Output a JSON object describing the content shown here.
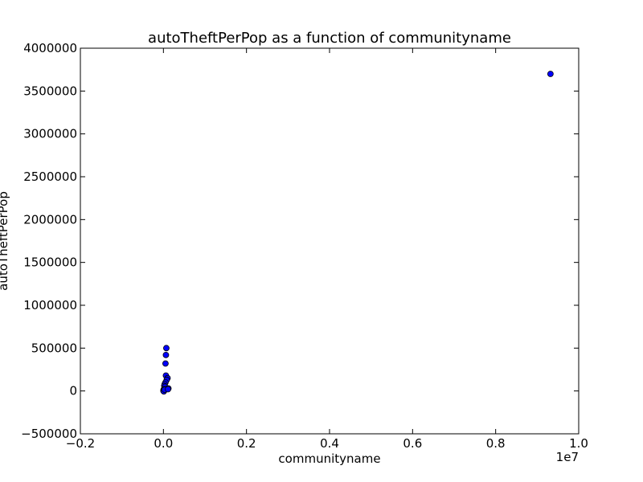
{
  "chart_data": {
    "type": "scatter",
    "title": "autoTheftPerPop as a function of communityname",
    "xlabel": "communityname",
    "ylabel": "autoTheftPerPop",
    "x_offset_label": "1e7",
    "xlim": [
      -0.2,
      1.0
    ],
    "ylim": [
      -500000,
      4000000
    ],
    "x_ticks": [
      -0.2,
      0.0,
      0.2,
      0.4,
      0.6,
      0.8,
      1.0
    ],
    "x_tick_labels": [
      "−0.2",
      "0.0",
      "0.2",
      "0.4",
      "0.6",
      "0.8",
      "1.0"
    ],
    "y_ticks": [
      -500000,
      0,
      500000,
      1000000,
      1500000,
      2000000,
      2500000,
      3000000,
      3500000,
      4000000
    ],
    "y_tick_labels": [
      "−500000",
      "0",
      "500000",
      "1000000",
      "1500000",
      "2000000",
      "2500000",
      "3000000",
      "3500000",
      "4000000"
    ],
    "grid": false,
    "marker_color": "#0000ff",
    "series": [
      {
        "x": [
          0.932,
          0.007,
          0.006,
          0.005,
          0.006,
          0.01,
          0.008,
          0.005,
          0.003,
          0.002,
          0.004,
          0.012,
          0.009,
          0.001,
          0.0,
          0.002,
          0.0,
          0.001,
          0.003,
          0.011
        ],
        "y": [
          3700000,
          500000,
          420000,
          320000,
          180000,
          150000,
          130000,
          100000,
          80000,
          60000,
          50000,
          30000,
          25000,
          20000,
          10000,
          5000,
          0,
          -5000,
          15000,
          20000
        ]
      }
    ]
  }
}
